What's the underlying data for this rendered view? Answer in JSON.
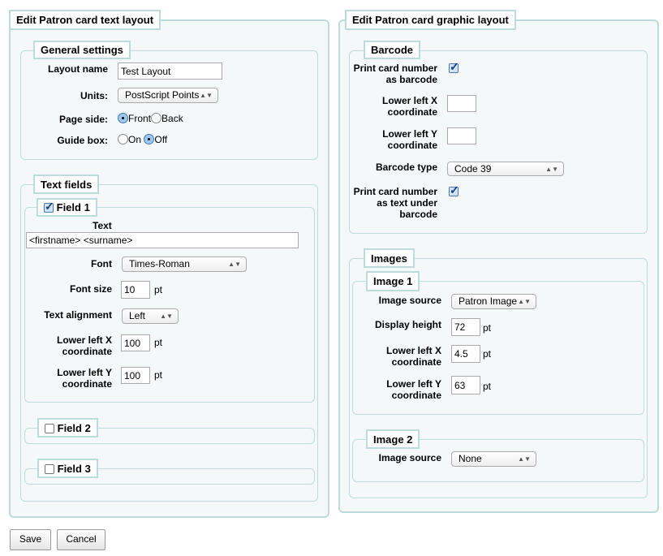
{
  "text_layout": {
    "title": "Edit Patron card text layout",
    "general": {
      "title": "General settings",
      "layout_name_label": "Layout name",
      "layout_name_value": "Test Layout",
      "units_label": "Units:",
      "units_value": "PostScript Points",
      "page_side_label": "Page side:",
      "page_side_options": [
        "Front",
        "Back"
      ],
      "page_side_selected": "Front",
      "guide_box_label": "Guide box:",
      "guide_box_options": [
        "On",
        "Off"
      ],
      "guide_box_selected": "Off"
    },
    "text_fields": {
      "title": "Text fields",
      "field1": {
        "label": "Field 1",
        "checked": true,
        "text_label": "Text",
        "text_value": "<firstname> <surname>",
        "font_label": "Font",
        "font_value": "Times-Roman",
        "font_size_label": "Font size",
        "font_size_value": "10",
        "unit": "pt",
        "align_label": "Text alignment",
        "align_value": "Left",
        "llx_label": "Lower left X coordinate",
        "llx_value": "100",
        "lly_label": "Lower left Y coordinate",
        "lly_value": "100"
      },
      "field2": {
        "label": "Field 2",
        "checked": false
      },
      "field3": {
        "label": "Field 3",
        "checked": false
      }
    }
  },
  "graphic_layout": {
    "title": "Edit Patron card graphic layout",
    "barcode": {
      "title": "Barcode",
      "print_label": "Print card number as barcode",
      "print_checked": true,
      "llx_label": "Lower left X coordinate",
      "llx_value": "",
      "lly_label": "Lower left Y coordinate",
      "lly_value": "",
      "type_label": "Barcode type",
      "type_value": "Code 39",
      "text_label": "Print card number as text under barcode",
      "text_checked": true
    },
    "images": {
      "title": "Images",
      "image1": {
        "title": "Image 1",
        "source_label": "Image source",
        "source_value": "Patron Image",
        "height_label": "Display height",
        "height_value": "72",
        "llx_label": "Lower left X coordinate",
        "llx_value": "4.5",
        "lly_label": "Lower left Y coordinate",
        "lly_value": "63",
        "unit": "pt"
      },
      "image2": {
        "title": "Image 2",
        "source_label": "Image source",
        "source_value": "None"
      }
    }
  },
  "buttons": {
    "save": "Save",
    "cancel": "Cancel"
  }
}
